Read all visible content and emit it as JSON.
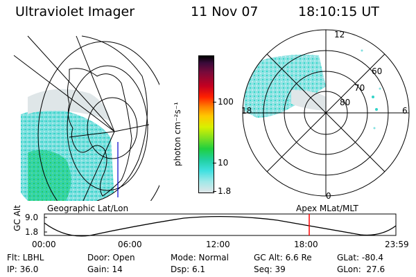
{
  "header": {
    "title": "Ultraviolet Imager",
    "date": "11 Nov 07",
    "time": "18:10:15 UT"
  },
  "geo_panel": {
    "label": "Geographic Lat/Lon"
  },
  "mag_panel": {
    "label": "Apex MLat/MLT",
    "mlt_labels": {
      "top": "12",
      "left": "18",
      "right": "6",
      "bottom": "0"
    },
    "lat_labels": [
      "60",
      "70",
      "80"
    ]
  },
  "colorbar": {
    "label": "photon cm⁻²s⁻¹",
    "ticks": [
      "100",
      "10",
      "1.8"
    ],
    "scale": "log"
  },
  "altitude_plot": {
    "ylabel": "GC Alt",
    "yticks": [
      "9.0",
      "1.8"
    ],
    "xticks": [
      "00:00",
      "06:00",
      "12:00",
      "18:00",
      "23:59"
    ],
    "marker_time": "18:10",
    "marker_color": "#ff0000"
  },
  "info": {
    "flt": "Flt: LBHL",
    "ip": "IP: 36.0",
    "door": "Door: Open",
    "gain": "Gain: 14",
    "mode": "Mode: Normal",
    "dsp": "Dsp:    6.1",
    "gc_alt": "GC Alt: 6.6 Re",
    "seq": "Seq: 39",
    "glat": "GLat: -80.4",
    "glon": "GLon:  27.6"
  }
}
